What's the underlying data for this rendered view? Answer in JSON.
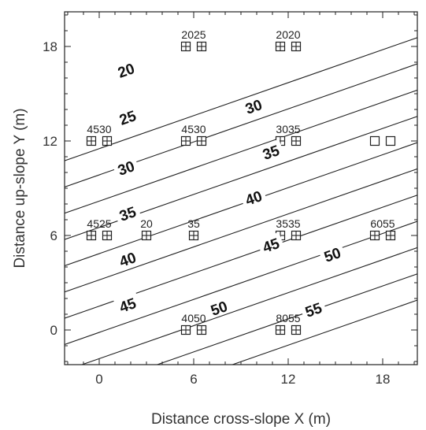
{
  "chart_data": {
    "type": "contour",
    "xlabel": "Distance cross-slope X (m)",
    "ylabel": "Distance up-slope Y (m)",
    "xlim": [
      -2.2,
      20.2
    ],
    "ylim": [
      -2.2,
      20.2
    ],
    "x_ticks": [
      0,
      6,
      12,
      18
    ],
    "y_ticks": [
      0,
      6,
      12,
      18
    ],
    "minor_tick_step": 1,
    "grid": false,
    "contour_levels": [
      10,
      15,
      20,
      25,
      30,
      35,
      40,
      45,
      50,
      55,
      60
    ],
    "contour_labels": [
      {
        "text": "20",
        "x": 1.7,
        "y": 16.5
      },
      {
        "text": "25",
        "x": 1.8,
        "y": 13.5
      },
      {
        "text": "30",
        "x": 1.7,
        "y": 10.3
      },
      {
        "text": "35",
        "x": 1.8,
        "y": 7.4
      },
      {
        "text": "40",
        "x": 1.8,
        "y": 4.5
      },
      {
        "text": "45",
        "x": 1.8,
        "y": 1.6
      },
      {
        "text": "30",
        "x": 9.8,
        "y": 14.2
      },
      {
        "text": "35",
        "x": 10.9,
        "y": 11.3
      },
      {
        "text": "40",
        "x": 9.8,
        "y": 8.4
      },
      {
        "text": "45",
        "x": 10.9,
        "y": 5.4
      },
      {
        "text": "50",
        "x": 7.6,
        "y": 1.4
      },
      {
        "text": "50",
        "x": 14.8,
        "y": 4.8
      },
      {
        "text": "55",
        "x": 13.6,
        "y": 1.3
      }
    ],
    "sample_points": [
      {
        "x": -0.5,
        "y": 12,
        "marker": "boxplus"
      },
      {
        "x": 0.5,
        "y": 12,
        "marker": "boxplus"
      },
      {
        "x": 5.5,
        "y": 12,
        "marker": "boxplus"
      },
      {
        "x": 6.5,
        "y": 12,
        "marker": "boxplus"
      },
      {
        "x": 11.5,
        "y": 12,
        "marker": "boxplus"
      },
      {
        "x": 12.5,
        "y": 12,
        "marker": "boxplus"
      },
      {
        "x": 17.5,
        "y": 12,
        "marker": "box"
      },
      {
        "x": 18.5,
        "y": 12,
        "marker": "box"
      },
      {
        "x": 5.5,
        "y": 18,
        "marker": "boxplus"
      },
      {
        "x": 6.5,
        "y": 18,
        "marker": "boxplus"
      },
      {
        "x": 11.5,
        "y": 18,
        "marker": "boxplus"
      },
      {
        "x": 12.5,
        "y": 18,
        "marker": "boxplus"
      },
      {
        "x": -0.5,
        "y": 6,
        "marker": "boxplus"
      },
      {
        "x": 0.5,
        "y": 6,
        "marker": "boxplus"
      },
      {
        "x": 3,
        "y": 6,
        "marker": "boxplus"
      },
      {
        "x": 6,
        "y": 6,
        "marker": "boxplus"
      },
      {
        "x": 11.5,
        "y": 6,
        "marker": "boxplus"
      },
      {
        "x": 12.5,
        "y": 6,
        "marker": "boxplus"
      },
      {
        "x": 17.5,
        "y": 6,
        "marker": "boxplus"
      },
      {
        "x": 18.5,
        "y": 6,
        "marker": "boxplus"
      },
      {
        "x": 5.5,
        "y": 0,
        "marker": "boxplus"
      },
      {
        "x": 6.5,
        "y": 0,
        "marker": "boxplus"
      },
      {
        "x": 11.5,
        "y": 0,
        "marker": "boxplus"
      },
      {
        "x": 12.5,
        "y": 0,
        "marker": "boxplus"
      }
    ],
    "pair_labels": [
      {
        "text": "2025",
        "x": 6,
        "y": 18
      },
      {
        "text": "2020",
        "x": 12,
        "y": 18
      },
      {
        "text": "4530",
        "x": 0,
        "y": 12
      },
      {
        "text": "4530",
        "x": 6,
        "y": 12
      },
      {
        "text": "3035",
        "x": 12,
        "y": 12
      },
      {
        "text": "4525",
        "x": 0,
        "y": 6
      },
      {
        "text": "20",
        "x": 3,
        "y": 6
      },
      {
        "text": "35",
        "x": 6,
        "y": 6
      },
      {
        "text": "3535",
        "x": 12,
        "y": 6
      },
      {
        "text": "6055",
        "x": 18,
        "y": 6
      },
      {
        "text": "4050",
        "x": 6,
        "y": 0
      },
      {
        "text": "8055",
        "x": 12,
        "y": 0
      }
    ]
  }
}
